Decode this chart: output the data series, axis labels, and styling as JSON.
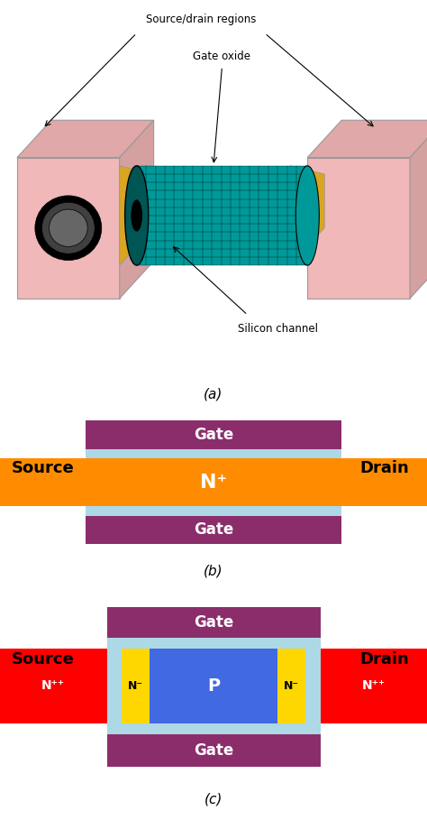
{
  "bg_color": "#ffffff",
  "gate_color": "#8B2D6B",
  "gate_oxide_color": "#ADD8E6",
  "n_plus_color": "#FF8C00",
  "n_minus_color": "#FFD700",
  "p_color": "#4169E1",
  "npp_color": "#FF0000",
  "source_drain_color": "#F4C2C2",
  "fig_label_a": "(a)",
  "fig_label_b": "(b)",
  "fig_label_c": "(c)",
  "annotation_source_drain": "Source/drain regions",
  "annotation_gate_oxide": "Gate oxide",
  "annotation_silicon": "Silicon channel",
  "label_source": "Source",
  "label_drain": "Drain",
  "label_gate": "Gate"
}
